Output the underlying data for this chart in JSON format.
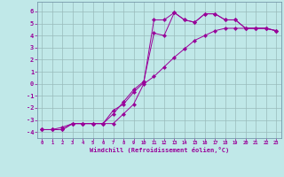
{
  "xlabel": "Windchill (Refroidissement éolien,°C)",
  "background_color": "#c0e8e8",
  "line_color": "#990099",
  "grid_color": "#99bbbb",
  "spine_color": "#7799aa",
  "xlim": [
    -0.5,
    23.5
  ],
  "ylim": [
    -4.5,
    6.8
  ],
  "xticks": [
    0,
    1,
    2,
    3,
    4,
    5,
    6,
    7,
    8,
    9,
    10,
    11,
    12,
    13,
    14,
    15,
    16,
    17,
    18,
    19,
    20,
    21,
    22,
    23
  ],
  "yticks": [
    -4,
    -3,
    -2,
    -1,
    0,
    1,
    2,
    3,
    4,
    5,
    6
  ],
  "curve1_x": [
    0,
    1,
    2,
    3,
    4,
    5,
    6,
    7,
    8,
    9,
    10,
    11,
    12,
    13,
    14,
    15,
    16,
    17,
    18,
    19,
    20,
    21,
    22,
    23
  ],
  "curve1_y": [
    -3.8,
    -3.8,
    -3.6,
    -3.3,
    -3.3,
    -3.3,
    -3.3,
    -2.2,
    -1.7,
    -0.7,
    0.1,
    5.3,
    5.3,
    5.9,
    5.3,
    5.1,
    5.8,
    5.8,
    5.3,
    5.3,
    4.6,
    4.6,
    4.6,
    4.4
  ],
  "curve2_x": [
    0,
    1,
    2,
    3,
    4,
    5,
    6,
    7,
    8,
    9,
    10,
    11,
    12,
    13,
    14,
    15,
    16,
    17,
    18,
    19,
    20,
    21,
    22,
    23
  ],
  "curve2_y": [
    -3.8,
    -3.8,
    -3.8,
    -3.3,
    -3.3,
    -3.3,
    -3.3,
    -2.5,
    -1.5,
    -0.5,
    0.2,
    4.2,
    4.0,
    5.9,
    5.3,
    5.1,
    5.8,
    5.8,
    5.3,
    5.3,
    4.6,
    4.6,
    4.6,
    4.4
  ],
  "curve3_x": [
    0,
    1,
    2,
    3,
    4,
    5,
    6,
    7,
    8,
    9,
    10,
    11,
    12,
    13,
    14,
    15,
    16,
    17,
    18,
    19,
    20,
    21,
    22,
    23
  ],
  "curve3_y": [
    -3.8,
    -3.8,
    -3.8,
    -3.3,
    -3.3,
    -3.3,
    -3.3,
    -3.3,
    -2.5,
    -1.7,
    0.0,
    0.6,
    1.4,
    2.2,
    2.9,
    3.6,
    4.0,
    4.4,
    4.6,
    4.6,
    4.6,
    4.6,
    4.6,
    4.4
  ]
}
